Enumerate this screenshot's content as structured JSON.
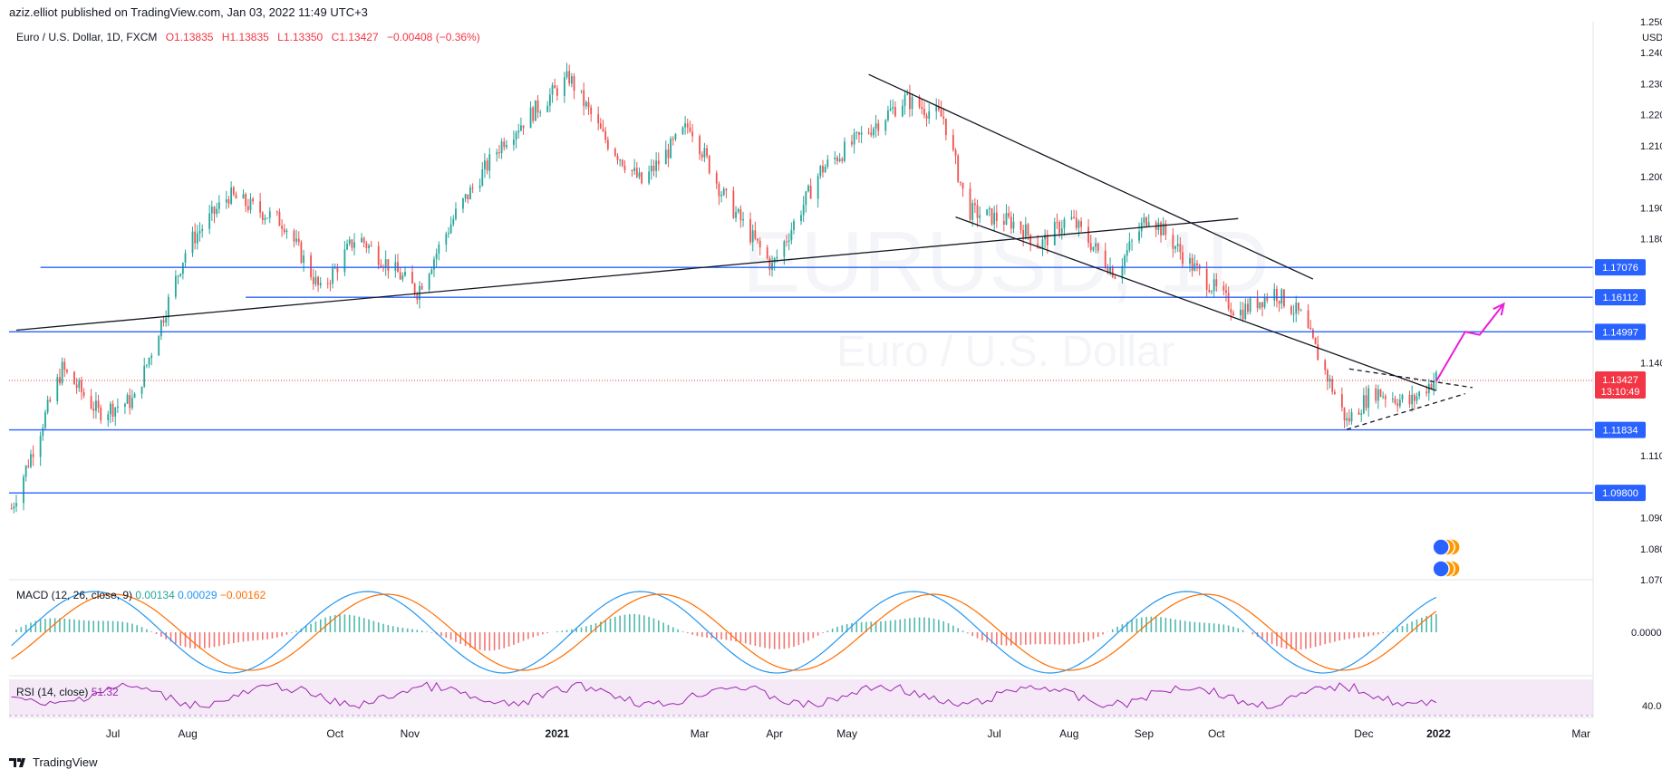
{
  "header": {
    "published": "aziz.elliot published on TradingView.com, Jan 03, 2022 11:49 UTC+3"
  },
  "legend": {
    "instrument": "Euro / U.S. Dollar, 1D, FXCM",
    "o": "O1.13835",
    "h": "H1.13835",
    "l": "L1.13350",
    "c": "C1.13427",
    "change": "−0.00408 (−0.36%)"
  },
  "watermark": {
    "symbol": "EURUSD, 1D",
    "name": "Euro / U.S. Dollar"
  },
  "currency": "USD",
  "price_badge": {
    "price": "1.13427",
    "countdown": "13:10:49"
  },
  "macd_legend": {
    "label": "MACD (12, 26, close, 9)",
    "v1": "0.00134",
    "v2": "0.00029",
    "v3": "−0.00162"
  },
  "rsi_legend": {
    "label": "RSI (14, close)",
    "value": "51.32"
  },
  "macd_axis": "0.00000",
  "rsi_axis": "40.00",
  "footer": {
    "brand": "TradingView"
  },
  "colors": {
    "up": "#26a69a",
    "down": "#ef5350",
    "level": "#2962ff",
    "arrow": "#e91eda",
    "macd": "#2196f3",
    "signal": "#ff6d00",
    "rsi": "#9c27b0"
  },
  "chart_data": {
    "type": "candlestick",
    "y_ticks": [
      "1.25000",
      "1.24000",
      "1.23000",
      "1.22000",
      "1.21000",
      "1.20000",
      "1.19000",
      "1.18000",
      "1.14000",
      "1.11000",
      "1.09000",
      "1.08000",
      "1.07000"
    ],
    "ylim": [
      1.07,
      1.25
    ],
    "x_ticks": [
      {
        "label": "Jul",
        "date": "2020-07-01"
      },
      {
        "label": "Aug",
        "date": "2020-08-01"
      },
      {
        "label": "Oct",
        "date": "2020-10-01"
      },
      {
        "label": "Nov",
        "date": "2020-11-01"
      },
      {
        "label": "2021",
        "date": "2021-01-01"
      },
      {
        "label": "Mar",
        "date": "2021-03-01"
      },
      {
        "label": "Apr",
        "date": "2021-04-01"
      },
      {
        "label": "May",
        "date": "2021-05-01"
      },
      {
        "label": "Jul",
        "date": "2021-07-01"
      },
      {
        "label": "Aug",
        "date": "2021-08-01"
      },
      {
        "label": "Sep",
        "date": "2021-09-01"
      },
      {
        "label": "Oct",
        "date": "2021-10-01"
      },
      {
        "label": "Dec",
        "date": "2021-12-01"
      },
      {
        "label": "2022",
        "date": "2022-01-01"
      },
      {
        "label": "Mar",
        "date": "2022-03-01"
      }
    ],
    "xlim": [
      "2020-05-19",
      "2022-03-06"
    ],
    "levels": [
      {
        "price": 1.17076,
        "label": "1.17076",
        "from": "2020-06-01"
      },
      {
        "price": 1.16112,
        "label": "1.16112",
        "from": "2020-08-25"
      },
      {
        "price": 1.14997,
        "label": "1.14997",
        "from": "2020-05-19"
      },
      {
        "price": 1.11834,
        "label": "1.11834",
        "from": "2020-05-19"
      },
      {
        "price": 1.098,
        "label": "1.09800",
        "from": "2020-05-19"
      }
    ],
    "close_line": 1.13427,
    "series": [
      {
        "date": "2020-05-20",
        "price": 1.093
      },
      {
        "date": "2020-06-10",
        "price": 1.138
      },
      {
        "date": "2020-06-25",
        "price": 1.124
      },
      {
        "date": "2020-07-10",
        "price": 1.128
      },
      {
        "date": "2020-08-01",
        "price": 1.178
      },
      {
        "date": "2020-08-18",
        "price": 1.194
      },
      {
        "date": "2020-09-10",
        "price": 1.185
      },
      {
        "date": "2020-09-25",
        "price": 1.163
      },
      {
        "date": "2020-10-10",
        "price": 1.181
      },
      {
        "date": "2020-11-04",
        "price": 1.163
      },
      {
        "date": "2020-11-20",
        "price": 1.188
      },
      {
        "date": "2020-12-10",
        "price": 1.212
      },
      {
        "date": "2021-01-06",
        "price": 1.232
      },
      {
        "date": "2021-01-20",
        "price": 1.213
      },
      {
        "date": "2021-02-05",
        "price": 1.198
      },
      {
        "date": "2021-02-25",
        "price": 1.217
      },
      {
        "date": "2021-03-10",
        "price": 1.195
      },
      {
        "date": "2021-03-31",
        "price": 1.171
      },
      {
        "date": "2021-04-20",
        "price": 1.202
      },
      {
        "date": "2021-05-25",
        "price": 1.225
      },
      {
        "date": "2021-06-10",
        "price": 1.219
      },
      {
        "date": "2021-06-20",
        "price": 1.189
      },
      {
        "date": "2021-07-10",
        "price": 1.185
      },
      {
        "date": "2021-07-20",
        "price": 1.178
      },
      {
        "date": "2021-08-01",
        "price": 1.187
      },
      {
        "date": "2021-08-20",
        "price": 1.169
      },
      {
        "date": "2021-09-03",
        "price": 1.188
      },
      {
        "date": "2021-09-20",
        "price": 1.172
      },
      {
        "date": "2021-10-10",
        "price": 1.156
      },
      {
        "date": "2021-10-25",
        "price": 1.163
      },
      {
        "date": "2021-11-05",
        "price": 1.155
      },
      {
        "date": "2021-11-24",
        "price": 1.121
      },
      {
        "date": "2021-12-05",
        "price": 1.131
      },
      {
        "date": "2021-12-20",
        "price": 1.127
      },
      {
        "date": "2022-01-01",
        "price": 1.136
      }
    ],
    "trendlines": [
      {
        "from": [
          "2020-05-22",
          1.1505
        ],
        "to": [
          "2021-10-10",
          1.1865
        ],
        "style": "solid"
      },
      {
        "from": [
          "2021-05-10",
          1.233
        ],
        "to": [
          "2021-11-10",
          1.167
        ],
        "style": "solid"
      },
      {
        "from": [
          "2021-06-15",
          1.187
        ],
        "to": [
          "2021-12-31",
          1.131
        ],
        "style": "solid"
      },
      {
        "from": [
          "2021-11-25",
          1.138
        ],
        "to": [
          "2022-01-15",
          1.132
        ],
        "style": "dashed"
      },
      {
        "from": [
          "2021-11-24",
          1.1185
        ],
        "to": [
          "2022-01-12",
          1.13
        ],
        "style": "dashed"
      }
    ],
    "arrow": [
      [
        "2021-12-31",
        1.134
      ],
      [
        "2022-01-12",
        1.15
      ],
      [
        "2022-01-18",
        1.149
      ],
      [
        "2022-01-28",
        1.159
      ]
    ]
  }
}
